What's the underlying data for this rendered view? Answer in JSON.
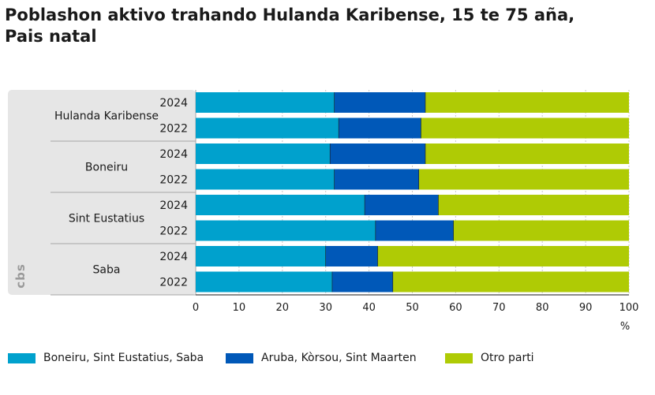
{
  "title_line1": "Poblashon aktivo trahando Hulanda Karibense, 15 te 75 aña,",
  "title_line2": "Pais natal",
  "logo_text": "cbs",
  "chart_data": {
    "type": "bar",
    "orientation": "horizontal",
    "stacked": true,
    "title": "Poblashon aktivo trahando Hulanda Karibense, 15 te 75 aña, Pais natal",
    "xlabel": "%",
    "xlim": [
      0,
      100
    ],
    "xticks": [
      0,
      10,
      20,
      30,
      40,
      50,
      60,
      70,
      80,
      90,
      100
    ],
    "grid": true,
    "legend_position": "bottom",
    "groups": [
      {
        "name": "Hulanda Karibense",
        "years": [
          "2024",
          "2022"
        ]
      },
      {
        "name": "Boneiru",
        "years": [
          "2024",
          "2022"
        ]
      },
      {
        "name": "Sint Eustatius",
        "years": [
          "2024",
          "2022"
        ]
      },
      {
        "name": "Saba",
        "years": [
          "2024",
          "2022"
        ]
      }
    ],
    "series": [
      {
        "name": "Boneiru, Sint Eustatius, Saba",
        "color": "#00a1cd",
        "values": [
          32,
          33,
          31,
          32,
          39,
          41.5,
          30,
          31.5
        ]
      },
      {
        "name": "Aruba, Kòrsou, Sint Maarten",
        "color": "#0058b8",
        "values": [
          21,
          19,
          22,
          19.5,
          17,
          18,
          12,
          14
        ]
      },
      {
        "name": "Otro parti",
        "color": "#afcb05",
        "values": [
          47,
          48,
          47,
          48.5,
          44,
          40.5,
          58,
          54.5
        ]
      }
    ]
  }
}
